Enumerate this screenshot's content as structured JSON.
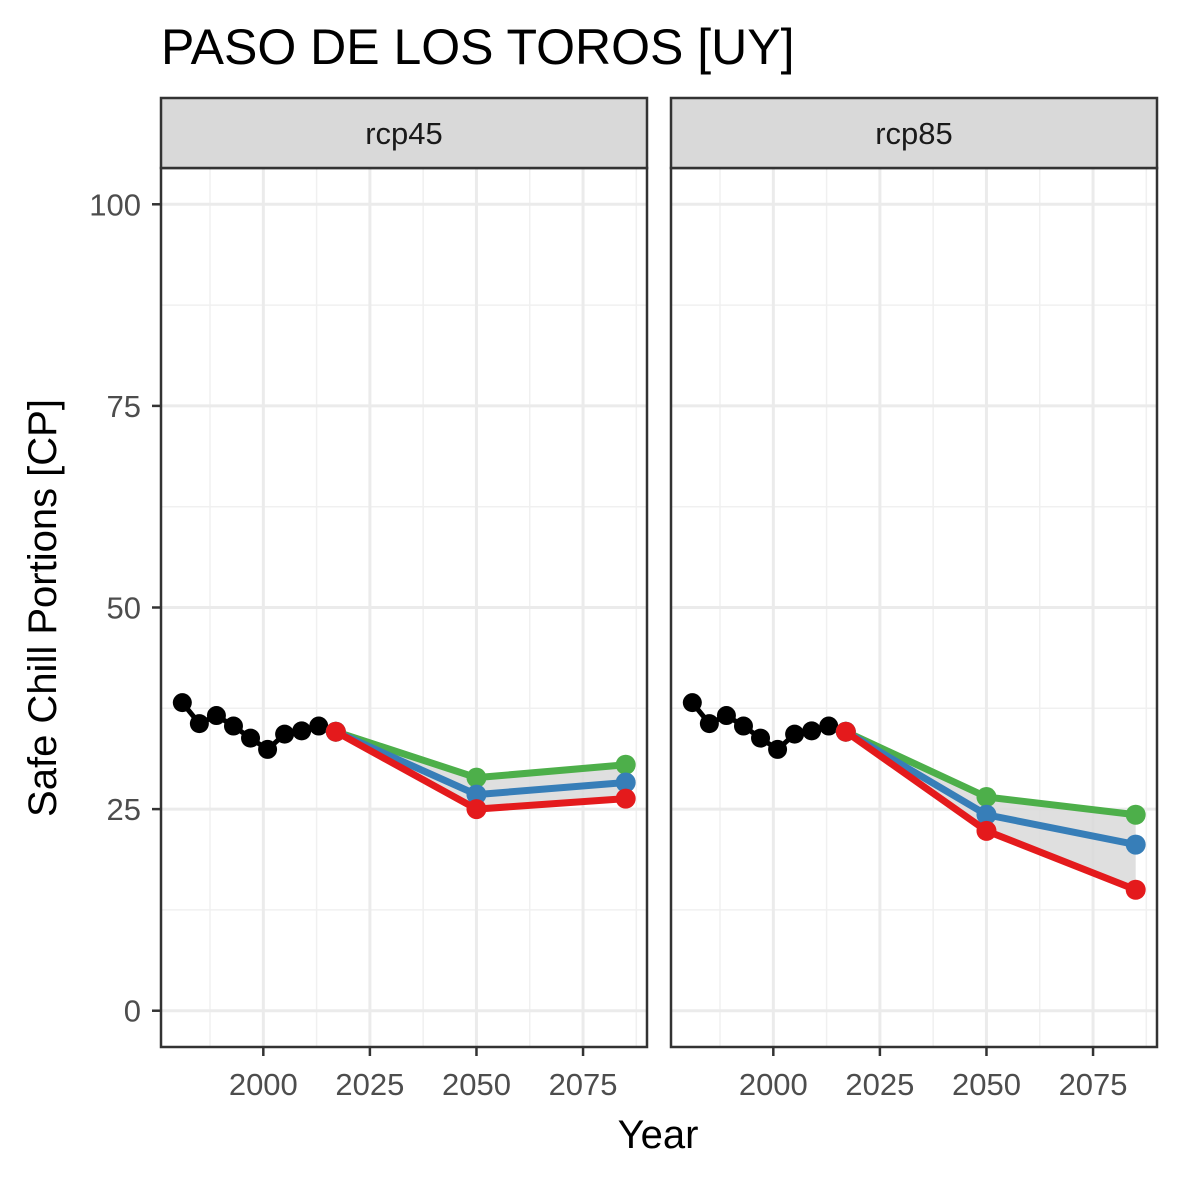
{
  "chart_data": {
    "type": "line",
    "title": "PASO DE LOS TOROS [UY]",
    "xlabel": "Year",
    "ylabel": "Safe Chill Portions [CP]",
    "xlim": [
      1976,
      2090
    ],
    "ylim": [
      -4.5,
      104.5
    ],
    "x_ticks": [
      2000,
      2025,
      2050,
      2075
    ],
    "y_ticks": [
      0,
      25,
      50,
      75,
      100
    ],
    "grid": true,
    "legend": "none",
    "colors": {
      "historic": "#000000",
      "low": "#e41a1c",
      "mid": "#377eb8",
      "high": "#4daf4a",
      "ribbon": "#d9d9d9"
    },
    "panels": [
      {
        "label": "rcp45",
        "historic": {
          "x": [
            1981,
            1985,
            1989,
            1993,
            1997,
            2001,
            2005,
            2009,
            2013,
            2017
          ],
          "y": [
            38.2,
            35.6,
            36.6,
            35.3,
            33.8,
            32.4,
            34.3,
            34.7,
            35.3,
            34.6
          ]
        },
        "series": [
          {
            "key": "high",
            "x": [
              2017,
              2050,
              2085
            ],
            "y": [
              34.6,
              28.9,
              30.5
            ]
          },
          {
            "key": "mid",
            "x": [
              2017,
              2050,
              2085
            ],
            "y": [
              34.6,
              26.8,
              28.3
            ]
          },
          {
            "key": "low",
            "x": [
              2017,
              2050,
              2085
            ],
            "y": [
              34.6,
              25.0,
              26.3
            ]
          }
        ]
      },
      {
        "label": "rcp85",
        "historic": {
          "x": [
            1981,
            1985,
            1989,
            1993,
            1997,
            2001,
            2005,
            2009,
            2013,
            2017
          ],
          "y": [
            38.2,
            35.6,
            36.6,
            35.3,
            33.8,
            32.4,
            34.3,
            34.7,
            35.3,
            34.6
          ]
        },
        "series": [
          {
            "key": "high",
            "x": [
              2017,
              2050,
              2085
            ],
            "y": [
              34.6,
              26.5,
              24.3
            ]
          },
          {
            "key": "mid",
            "x": [
              2017,
              2050,
              2085
            ],
            "y": [
              34.6,
              24.3,
              20.6
            ]
          },
          {
            "key": "low",
            "x": [
              2017,
              2050,
              2085
            ],
            "y": [
              34.6,
              22.3,
              15.0
            ]
          }
        ]
      }
    ]
  }
}
